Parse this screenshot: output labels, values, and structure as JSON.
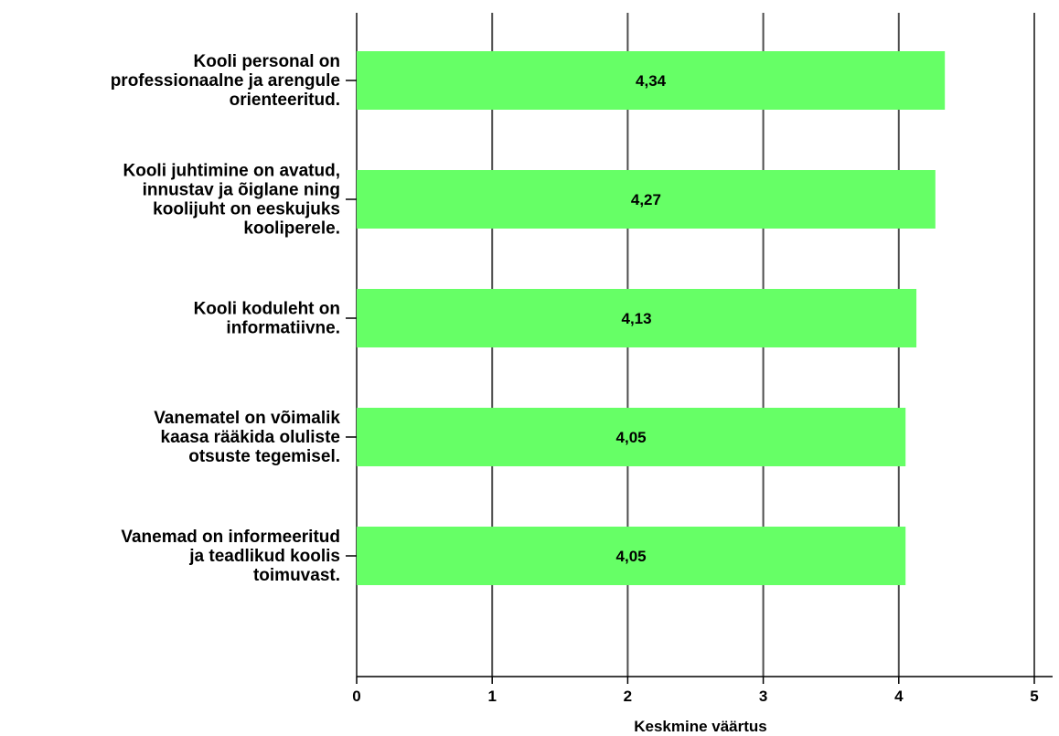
{
  "chart_data": {
    "type": "bar",
    "orientation": "horizontal",
    "categories": [
      "Kooli personal on professionaalne ja arengule orienteeritud.",
      "Kooli juhtimine on avatud, innustav ja õiglane ning koolijuht on eeskujuks kooliperele.",
      "Kooli koduleht on informatiivne.",
      "Vanematel on võimalik kaasa rääkida oluliste otsuste tegemisel.",
      "Vanemad on informeeritud ja teadlikud koolis toimuvast."
    ],
    "category_lines": [
      [
        "Kooli personal on",
        "professionaalne ja arengule",
        "orienteeritud."
      ],
      [
        "Kooli juhtimine on avatud,",
        "innustav ja õiglane ning",
        "koolijuht on eeskujuks",
        "kooliperele."
      ],
      [
        "Kooli koduleht on",
        "informatiivne."
      ],
      [
        "Vanematel on võimalik",
        "kaasa rääkida oluliste",
        "otsuste tegemisel."
      ],
      [
        "Vanemad on informeeritud",
        "ja teadlikud koolis",
        "toimuvast."
      ]
    ],
    "values": [
      4.34,
      4.27,
      4.13,
      4.05,
      4.05
    ],
    "data_labels": [
      "4,34",
      "4,27",
      "4,13",
      "4,05",
      "4,05"
    ],
    "xlabel": "Keskmine väärtus",
    "ylabel": "",
    "title": "",
    "xlim": [
      0,
      5
    ],
    "xticks": [
      0,
      1,
      2,
      3,
      4,
      5
    ],
    "xtick_labels": [
      "0",
      "1",
      "2",
      "3",
      "4",
      "5"
    ],
    "grid": "vertical",
    "legend": "none",
    "colors": {
      "bar_fill": "#66ff66",
      "grid": "#4d4d4d",
      "axis": "#000000",
      "text": "#000000"
    }
  }
}
